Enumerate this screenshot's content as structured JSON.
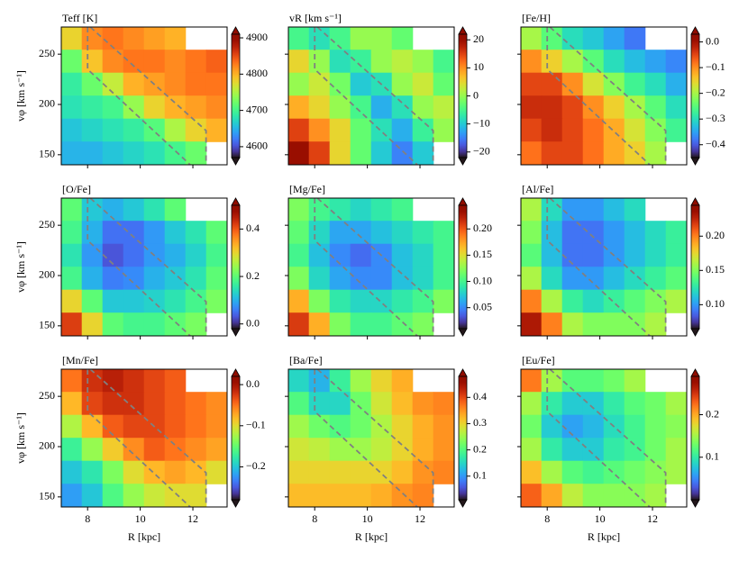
{
  "chart_data": [
    {
      "type": "heatmap",
      "title": "Teff [K]",
      "ylabel": "vφ [km s⁻¹]",
      "xlim": [
        7,
        13.3
      ],
      "ylim": [
        140,
        277
      ],
      "xticks": [
        8,
        10,
        12
      ],
      "yticks": [
        150,
        200,
        250
      ],
      "clim": [
        4570,
        4910
      ],
      "cticks": [
        4600,
        4700,
        4800,
        4900
      ],
      "values": [
        [
          4780,
          4820,
          4830,
          4820,
          4810,
          4800,
          null,
          null
        ],
        [
          4720,
          4790,
          4820,
          4830,
          4830,
          4820,
          4830,
          4840
        ],
        [
          4690,
          4720,
          4760,
          4800,
          4810,
          4820,
          4830,
          4830
        ],
        [
          4680,
          4690,
          4700,
          4740,
          4780,
          4800,
          4810,
          4820
        ],
        [
          4660,
          4670,
          4680,
          4690,
          4710,
          4750,
          4780,
          4800
        ],
        [
          4650,
          4650,
          4660,
          4670,
          4680,
          4700,
          4720,
          null
        ]
      ],
      "region": [
        {
          "x": [
            8.1,
            12.5,
            12.5
          ],
          "y": [
            277,
            174,
            140
          ]
        },
        {
          "x": [
            8,
            8,
            11.9
          ],
          "y": [
            277,
            235,
            140
          ]
        }
      ]
    },
    {
      "type": "heatmap",
      "title": "vR [km s⁻¹]",
      "xlim": [
        7,
        13.3
      ],
      "ylim": [
        140,
        277
      ],
      "xticks": [
        8,
        10,
        12
      ],
      "yticks": [
        150,
        200,
        250
      ],
      "clim": [
        -22,
        22
      ],
      "cticks": [
        {
          "value": -20,
          "label": "−20"
        },
        {
          "value": -10,
          "label": "−10"
        },
        0,
        10,
        20
      ],
      "values": [
        [
          -5,
          -8,
          -5,
          0,
          0,
          -3,
          null,
          null
        ],
        [
          5,
          0,
          -8,
          -6,
          0,
          2,
          0,
          -5
        ],
        [
          0,
          3,
          -2,
          -10,
          -8,
          0,
          3,
          -3
        ],
        [
          8,
          5,
          0,
          -5,
          -12,
          -8,
          0,
          2
        ],
        [
          15,
          10,
          5,
          -3,
          -8,
          -12,
          -6,
          0
        ],
        [
          20,
          15,
          5,
          -3,
          -10,
          -15,
          -10,
          null
        ]
      ],
      "region": [
        {
          "x": [
            8.1,
            12.5,
            12.5
          ],
          "y": [
            277,
            174,
            140
          ]
        },
        {
          "x": [
            8,
            8,
            11.9
          ],
          "y": [
            277,
            235,
            140
          ]
        }
      ]
    },
    {
      "type": "heatmap",
      "title": "[Fe/H]",
      "xlim": [
        7,
        13.3
      ],
      "ylim": [
        140,
        277
      ],
      "xticks": [
        8,
        10,
        12
      ],
      "yticks": [
        150,
        200,
        250
      ],
      "clim": [
        -0.45,
        0.03
      ],
      "cticks": [
        {
          "value": 0,
          "label": "0.0"
        },
        {
          "value": -0.1,
          "label": "−0.1"
        },
        {
          "value": -0.2,
          "label": "−0.2"
        },
        {
          "value": -0.3,
          "label": "−0.3"
        },
        {
          "value": -0.4,
          "label": "−0.4"
        }
      ],
      "values": [
        [
          -0.2,
          -0.25,
          -0.3,
          -0.32,
          -0.35,
          -0.38,
          null,
          null
        ],
        [
          -0.1,
          -0.15,
          -0.2,
          -0.25,
          -0.3,
          -0.33,
          -0.35,
          -0.37
        ],
        [
          -0.05,
          -0.05,
          -0.1,
          -0.17,
          -0.22,
          -0.27,
          -0.3,
          -0.34
        ],
        [
          -0.03,
          -0.03,
          -0.05,
          -0.1,
          -0.15,
          -0.2,
          -0.25,
          -0.3
        ],
        [
          -0.05,
          -0.03,
          -0.05,
          -0.08,
          -0.12,
          -0.17,
          -0.22,
          -0.27
        ],
        [
          -0.08,
          -0.05,
          -0.05,
          -0.08,
          -0.12,
          -0.15,
          -0.2,
          null
        ]
      ],
      "region": [
        {
          "x": [
            8.1,
            12.5,
            12.5
          ],
          "y": [
            277,
            174,
            140
          ]
        },
        {
          "x": [
            8,
            8,
            11.9
          ],
          "y": [
            277,
            235,
            140
          ]
        }
      ]
    },
    {
      "type": "heatmap",
      "title": "[O/Fe]",
      "ylabel": "vφ [km s⁻¹]",
      "xlim": [
        7,
        13.3
      ],
      "ylim": [
        140,
        277
      ],
      "xticks": [
        8,
        10,
        12
      ],
      "yticks": [
        150,
        200,
        250
      ],
      "clim": [
        -0.02,
        0.5
      ],
      "cticks": [
        {
          "value": 0,
          "label": "0.0"
        },
        0.2,
        0.4
      ],
      "values": [
        [
          0.2,
          0.12,
          0.1,
          0.12,
          0.15,
          0.2,
          null,
          null
        ],
        [
          0.18,
          0.1,
          0.05,
          0.05,
          0.08,
          0.12,
          0.15,
          0.2
        ],
        [
          0.15,
          0.08,
          0.03,
          0.05,
          0.08,
          0.1,
          0.13,
          0.18
        ],
        [
          0.18,
          0.1,
          0.06,
          0.07,
          0.1,
          0.12,
          0.15,
          0.2
        ],
        [
          0.3,
          0.2,
          0.12,
          0.12,
          0.13,
          0.15,
          0.18,
          0.22
        ],
        [
          0.42,
          0.3,
          0.2,
          0.18,
          0.18,
          0.2,
          0.22,
          null
        ]
      ],
      "region": [
        {
          "x": [
            8.1,
            12.5,
            12.5
          ],
          "y": [
            277,
            174,
            140
          ]
        },
        {
          "x": [
            8,
            8,
            11.9
          ],
          "y": [
            277,
            235,
            140
          ]
        }
      ]
    },
    {
      "type": "heatmap",
      "title": "[Mg/Fe]",
      "xlim": [
        7,
        13.3
      ],
      "ylim": [
        140,
        277
      ],
      "xticks": [
        8,
        10,
        12
      ],
      "yticks": [
        150,
        200,
        250
      ],
      "clim": [
        0.01,
        0.245
      ],
      "cticks": [
        0.05,
        {
          "value": 0.1,
          "label": "0.10"
        },
        0.15,
        {
          "value": 0.2,
          "label": "0.20"
        }
      ],
      "values": [
        [
          0.12,
          0.1,
          0.09,
          0.08,
          0.09,
          0.1,
          null,
          null
        ],
        [
          0.11,
          0.08,
          0.06,
          0.06,
          0.07,
          0.08,
          0.09,
          0.1
        ],
        [
          0.1,
          0.07,
          0.05,
          0.04,
          0.05,
          0.07,
          0.08,
          0.1
        ],
        [
          0.12,
          0.08,
          0.06,
          0.05,
          0.05,
          0.07,
          0.08,
          0.1
        ],
        [
          0.17,
          0.12,
          0.09,
          0.08,
          0.08,
          0.09,
          0.1,
          0.12
        ],
        [
          0.21,
          0.17,
          0.12,
          0.1,
          0.1,
          0.11,
          0.12,
          null
        ]
      ],
      "region": [
        {
          "x": [
            8.1,
            12.5,
            12.5
          ],
          "y": [
            277,
            174,
            140
          ]
        },
        {
          "x": [
            8,
            8,
            11.9
          ],
          "y": [
            277,
            235,
            140
          ]
        }
      ]
    },
    {
      "type": "heatmap",
      "title": "[Al/Fe]",
      "xlim": [
        7,
        13.3
      ],
      "ylim": [
        140,
        277
      ],
      "xticks": [
        8,
        10,
        12
      ],
      "yticks": [
        150,
        200,
        250
      ],
      "clim": [
        0.065,
        0.245
      ],
      "cticks": [
        {
          "value": 0.1,
          "label": "0.10"
        },
        0.15,
        {
          "value": 0.2,
          "label": "0.20"
        }
      ],
      "values": [
        [
          0.16,
          0.12,
          0.1,
          0.1,
          0.11,
          0.12,
          null,
          null
        ],
        [
          0.15,
          0.11,
          0.09,
          0.09,
          0.1,
          0.11,
          0.12,
          0.13
        ],
        [
          0.14,
          0.11,
          0.09,
          0.09,
          0.1,
          0.11,
          0.12,
          0.13
        ],
        [
          0.16,
          0.12,
          0.1,
          0.1,
          0.11,
          0.12,
          0.13,
          0.14
        ],
        [
          0.2,
          0.16,
          0.13,
          0.12,
          0.13,
          0.14,
          0.15,
          0.16
        ],
        [
          0.23,
          0.2,
          0.16,
          0.15,
          0.15,
          0.15,
          0.16,
          null
        ]
      ],
      "region": [
        {
          "x": [
            8.1,
            12.5,
            12.5
          ],
          "y": [
            277,
            174,
            140
          ]
        },
        {
          "x": [
            8,
            8,
            11.9
          ],
          "y": [
            277,
            235,
            140
          ]
        }
      ]
    },
    {
      "type": "heatmap",
      "title": "[Mn/Fe]",
      "ylabel": "vφ [km s⁻¹]",
      "xlabel": "R [kpc]",
      "xlim": [
        7,
        13.3
      ],
      "ylim": [
        140,
        277
      ],
      "xticks": [
        8,
        10,
        12
      ],
      "yticks": [
        150,
        200,
        250
      ],
      "clim": [
        -0.28,
        0.02
      ],
      "cticks": [
        {
          "value": 0,
          "label": "0.0"
        },
        {
          "value": -0.1,
          "label": "−0.1"
        },
        {
          "value": -0.2,
          "label": "−0.2"
        }
      ],
      "values": [
        [
          -0.05,
          -0.02,
          -0.01,
          -0.02,
          -0.03,
          -0.04,
          null,
          null
        ],
        [
          -0.08,
          -0.03,
          -0.02,
          -0.02,
          -0.03,
          -0.04,
          -0.05,
          -0.06
        ],
        [
          -0.12,
          -0.08,
          -0.04,
          -0.03,
          -0.03,
          -0.04,
          -0.05,
          -0.06
        ],
        [
          -0.17,
          -0.13,
          -0.09,
          -0.06,
          -0.04,
          -0.05,
          -0.06,
          -0.07
        ],
        [
          -0.2,
          -0.18,
          -0.14,
          -0.1,
          -0.08,
          -0.07,
          -0.08,
          -0.1
        ],
        [
          -0.22,
          -0.2,
          -0.16,
          -0.13,
          -0.11,
          -0.1,
          -0.1,
          null
        ]
      ],
      "region": [
        {
          "x": [
            8.1,
            12.5,
            12.5
          ],
          "y": [
            277,
            174,
            140
          ]
        },
        {
          "x": [
            8,
            8,
            11.9
          ],
          "y": [
            277,
            235,
            140
          ]
        }
      ]
    },
    {
      "type": "heatmap",
      "title": "[Ba/Fe]",
      "xlabel": "R [kpc]",
      "xlim": [
        7,
        13.3
      ],
      "ylim": [
        140,
        277
      ],
      "xticks": [
        8,
        10,
        12
      ],
      "yticks": [
        150,
        200,
        250
      ],
      "clim": [
        0.01,
        0.48
      ],
      "cticks": [
        0.1,
        0.2,
        0.3,
        0.4
      ],
      "values": [
        [
          0.15,
          0.12,
          0.18,
          0.25,
          0.3,
          0.33,
          null,
          null
        ],
        [
          0.2,
          0.15,
          0.15,
          0.22,
          0.28,
          0.32,
          0.35,
          0.36
        ],
        [
          0.25,
          0.22,
          0.2,
          0.22,
          0.26,
          0.3,
          0.33,
          0.35
        ],
        [
          0.28,
          0.27,
          0.25,
          0.25,
          0.27,
          0.3,
          0.33,
          0.35
        ],
        [
          0.3,
          0.3,
          0.3,
          0.3,
          0.3,
          0.32,
          0.35,
          0.36
        ],
        [
          0.32,
          0.32,
          0.32,
          0.32,
          0.33,
          0.35,
          0.36,
          null
        ]
      ],
      "region": [
        {
          "x": [
            8.1,
            12.5,
            12.5
          ],
          "y": [
            277,
            174,
            140
          ]
        },
        {
          "x": [
            8,
            8,
            11.9
          ],
          "y": [
            277,
            235,
            140
          ]
        }
      ]
    },
    {
      "type": "heatmap",
      "title": "[Eu/Fe]",
      "xlabel": "R [kpc]",
      "xlim": [
        7,
        13.3
      ],
      "ylim": [
        140,
        277
      ],
      "xticks": [
        8,
        10,
        12
      ],
      "yticks": [
        150,
        200,
        250
      ],
      "clim": [
        0,
        0.29
      ],
      "cticks": [
        0.1,
        0.2
      ],
      "values": [
        [
          0.22,
          0.15,
          0.12,
          0.12,
          0.13,
          0.15,
          null,
          null
        ],
        [
          0.15,
          0.1,
          0.08,
          0.08,
          0.1,
          0.12,
          0.13,
          0.15
        ],
        [
          0.13,
          0.08,
          0.06,
          0.07,
          0.09,
          0.11,
          0.13,
          0.14
        ],
        [
          0.15,
          0.1,
          0.08,
          0.08,
          0.1,
          0.11,
          0.13,
          0.15
        ],
        [
          0.19,
          0.15,
          0.12,
          0.11,
          0.12,
          0.13,
          0.14,
          0.15
        ],
        [
          0.23,
          0.2,
          0.16,
          0.14,
          0.14,
          0.14,
          0.15,
          null
        ]
      ],
      "region": [
        {
          "x": [
            8.1,
            12.5,
            12.5
          ],
          "y": [
            277,
            174,
            140
          ]
        },
        {
          "x": [
            8,
            8,
            11.9
          ],
          "y": [
            277,
            235,
            140
          ]
        }
      ]
    }
  ]
}
